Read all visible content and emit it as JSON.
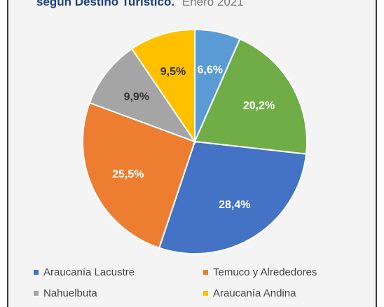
{
  "chart_data": {
    "type": "pie",
    "title": "según Destino Turístico.",
    "subtitle": "Enero 2021",
    "slices": [
      {
        "label": "6,6%",
        "value": 6.6,
        "color": "#5b9bd5",
        "category": "",
        "label_color": "#ffffff"
      },
      {
        "label": "20,2%",
        "value": 20.2,
        "color": "#70ad47",
        "category": "",
        "label_color": "#ffffff"
      },
      {
        "label": "28,4%",
        "value": 28.4,
        "color": "#4472c4",
        "category": "Araucanía Lacustre",
        "label_color": "#ffffff"
      },
      {
        "label": "25,5%",
        "value": 25.5,
        "color": "#ed7d31",
        "category": "Temuco y Alrededores",
        "label_color": "#ffffff"
      },
      {
        "label": "9,9%",
        "value": 9.9,
        "color": "#a5a5a5",
        "category": "Nahuelbuta",
        "label_color": "#333333"
      },
      {
        "label": "9,5%",
        "value": 9.5,
        "color": "#ffc000",
        "category": "Araucanía Andina",
        "label_color": "#333333"
      }
    ],
    "legend": [
      {
        "label": "Araucanía Lacustre",
        "color": "#4472c4"
      },
      {
        "label": "Temuco y Alrededores",
        "color": "#ed7d31"
      },
      {
        "label": "Nahuelbuta",
        "color": "#a5a5a5"
      },
      {
        "label": "Araucanía Andina",
        "color": "#ffc000"
      }
    ],
    "legend_position": "bottom"
  }
}
